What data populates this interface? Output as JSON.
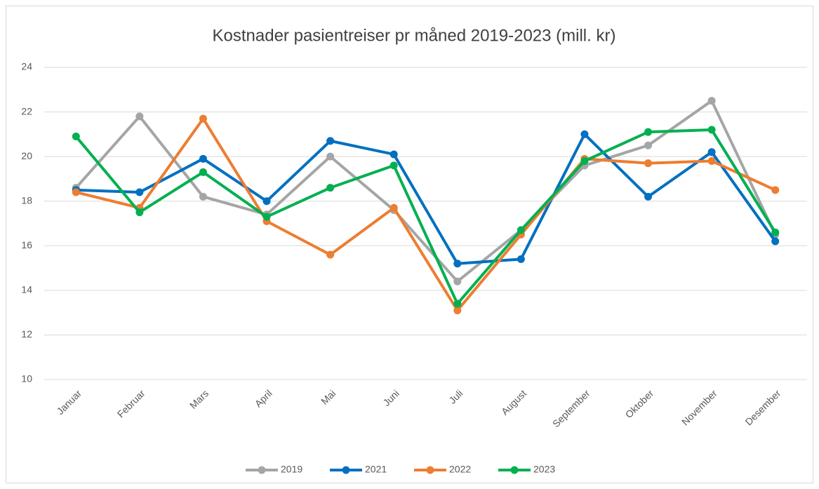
{
  "chart_data": {
    "type": "line",
    "title": "Kostnader pasientreiser pr måned 2019-2023 (mill. kr)",
    "categories": [
      "Januar",
      "Februar",
      "Mars",
      "April",
      "Mai",
      "Juni",
      "Juli",
      "August",
      "September",
      "Oktober",
      "November",
      "Desember"
    ],
    "series": [
      {
        "name": "2019",
        "color": "#a5a5a5",
        "values": [
          18.6,
          21.8,
          18.2,
          17.4,
          20.0,
          17.6,
          14.4,
          16.7,
          19.6,
          20.5,
          22.5,
          16.5
        ]
      },
      {
        "name": "2021",
        "color": "#0070c0",
        "values": [
          18.5,
          18.4,
          19.9,
          18.0,
          20.7,
          20.1,
          15.2,
          15.4,
          21.0,
          18.2,
          20.2,
          16.2
        ]
      },
      {
        "name": "2022",
        "color": "#ed7d31",
        "values": [
          18.4,
          17.7,
          21.7,
          17.1,
          15.6,
          17.7,
          13.1,
          16.5,
          19.9,
          19.7,
          19.8,
          18.5
        ]
      },
      {
        "name": "2023",
        "color": "#00b050",
        "values": [
          20.9,
          17.5,
          19.3,
          17.3,
          18.6,
          19.6,
          13.4,
          16.7,
          19.8,
          21.1,
          21.2,
          16.6
        ]
      }
    ],
    "ylim": [
      10,
      24
    ],
    "yticks": [
      10,
      12,
      14,
      16,
      18,
      20,
      22,
      24
    ],
    "grid": true,
    "legend": "bottom"
  }
}
